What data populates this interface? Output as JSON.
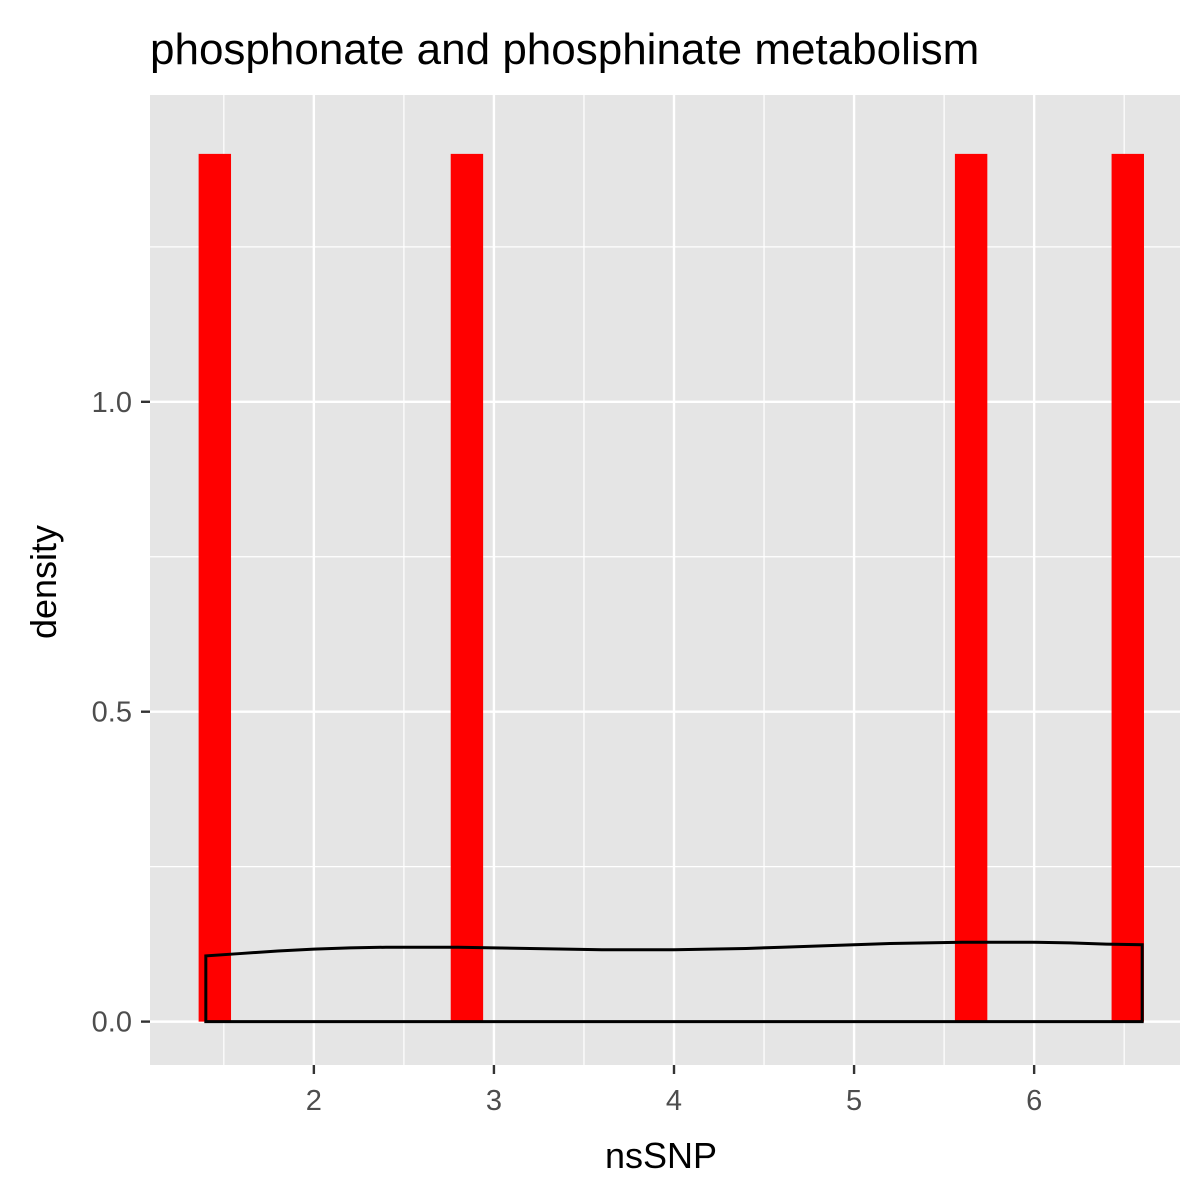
{
  "chart_data": {
    "type": "histogram+density",
    "title": "phosphonate and phosphinate metabolism",
    "xlabel": "nsSNP",
    "ylabel": "density",
    "xlim": [
      1.09,
      6.81
    ],
    "ylim": [
      -0.07,
      1.495
    ],
    "x_ticks": [
      2,
      3,
      4,
      5,
      6
    ],
    "y_ticks": [
      0.0,
      0.5,
      1.0
    ],
    "x_tick_labels": [
      "2",
      "3",
      "4",
      "5",
      "6"
    ],
    "y_tick_labels": [
      "0.0",
      "0.5",
      "1.0"
    ],
    "grid": true,
    "background_color": "#e5e5e5",
    "grid_color": "#ffffff",
    "bar_color": "#ff0000",
    "density_line_color": "#000000",
    "bars": [
      {
        "x_start": 1.36,
        "x_end": 1.54,
        "density": 1.4
      },
      {
        "x_start": 2.76,
        "x_end": 2.94,
        "density": 1.4
      },
      {
        "x_start": 5.56,
        "x_end": 5.74,
        "density": 1.4
      },
      {
        "x_start": 6.43,
        "x_end": 6.61,
        "density": 1.4
      }
    ],
    "density_curve": {
      "x": [
        1.4,
        1.6,
        1.8,
        2.0,
        2.2,
        2.4,
        2.6,
        2.8,
        3.0,
        3.2,
        3.4,
        3.6,
        3.8,
        4.0,
        4.2,
        4.4,
        4.6,
        4.8,
        5.0,
        5.2,
        5.4,
        5.6,
        5.8,
        6.0,
        6.2,
        6.4,
        6.6
      ],
      "y": [
        0.106,
        0.11,
        0.114,
        0.117,
        0.119,
        0.12,
        0.12,
        0.12,
        0.119,
        0.118,
        0.117,
        0.116,
        0.116,
        0.116,
        0.117,
        0.118,
        0.12,
        0.122,
        0.124,
        0.126,
        0.127,
        0.128,
        0.128,
        0.128,
        0.127,
        0.125,
        0.124
      ]
    }
  }
}
